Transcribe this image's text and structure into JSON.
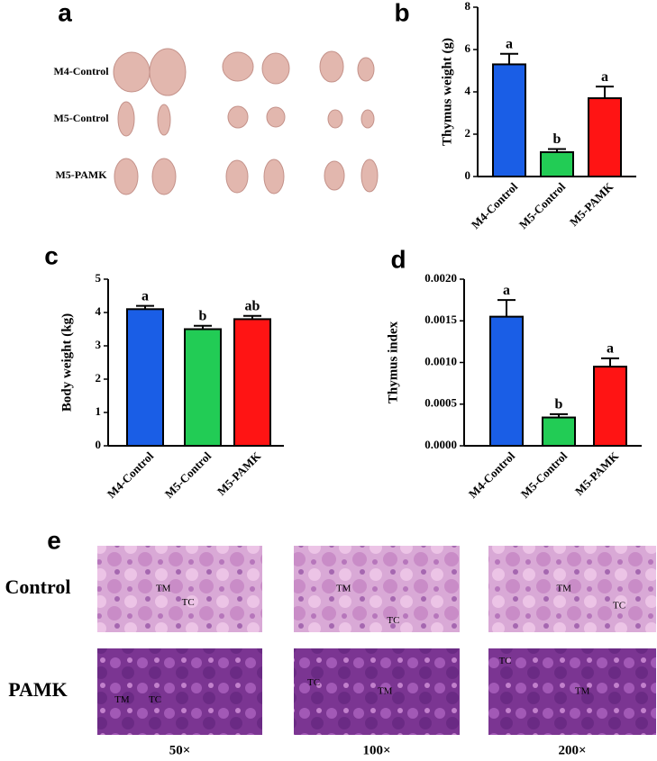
{
  "panel_labels": [
    "a",
    "b",
    "c",
    "d",
    "e"
  ],
  "photo": {
    "row_labels": [
      "M4-Control",
      "M5-Control",
      "M5-PAMK"
    ]
  },
  "chart_data": [
    {
      "type": "bar",
      "y_label": "Thymus weight (g)",
      "categories": [
        "M4-Control",
        "M5-Control",
        "M5-PAMK"
      ],
      "values": [
        5.3,
        1.15,
        3.7
      ],
      "errors": [
        0.5,
        0.15,
        0.55
      ],
      "annotations": [
        "a",
        "b",
        "a"
      ],
      "colors": [
        "#1a5ee6",
        "#22cc55",
        "#ff1414"
      ],
      "ylim": [
        0,
        8
      ],
      "yticks": [
        0,
        2,
        4,
        6,
        8
      ]
    },
    {
      "type": "bar",
      "y_label": "Body weight (kg)",
      "categories": [
        "M4-Control",
        "M5-Control",
        "M5-PAMK"
      ],
      "values": [
        4.1,
        3.5,
        3.8
      ],
      "errors": [
        0.1,
        0.1,
        0.1
      ],
      "annotations": [
        "a",
        "b",
        "ab"
      ],
      "colors": [
        "#1a5ee6",
        "#22cc55",
        "#ff1414"
      ],
      "ylim": [
        0,
        5
      ],
      "yticks": [
        0,
        1,
        2,
        3,
        4,
        5
      ]
    },
    {
      "type": "bar",
      "y_label": "Thymus index",
      "categories": [
        "M4-Control",
        "M5-Control",
        "M5-PAMK"
      ],
      "values": [
        0.00155,
        0.00034,
        0.00095
      ],
      "errors": [
        0.0002,
        4e-05,
        0.0001
      ],
      "annotations": [
        "a",
        "b",
        "a"
      ],
      "colors": [
        "#1a5ee6",
        "#22cc55",
        "#ff1414"
      ],
      "ylim": [
        0,
        0.002
      ],
      "yticks": [
        {
          "value": 0,
          "label": "0.0000"
        },
        {
          "value": 0.0005,
          "label": "0.0005"
        },
        {
          "value": 0.001,
          "label": "0.0010"
        },
        {
          "value": 0.0015,
          "label": "0.0015"
        },
        {
          "value": 0.002,
          "label": "0.0020"
        }
      ]
    }
  ],
  "histology": {
    "row_labels": [
      "Control",
      "PAMK"
    ],
    "column_labels": [
      "50×",
      "100×",
      "200×"
    ],
    "images": [
      [
        "TM",
        "TC"
      ],
      [
        "TM",
        "TC"
      ],
      [
        "TM",
        "TC"
      ],
      [
        "TM",
        "TC"
      ],
      [
        "TC",
        "TM"
      ],
      [
        "TC",
        "TM"
      ]
    ]
  }
}
